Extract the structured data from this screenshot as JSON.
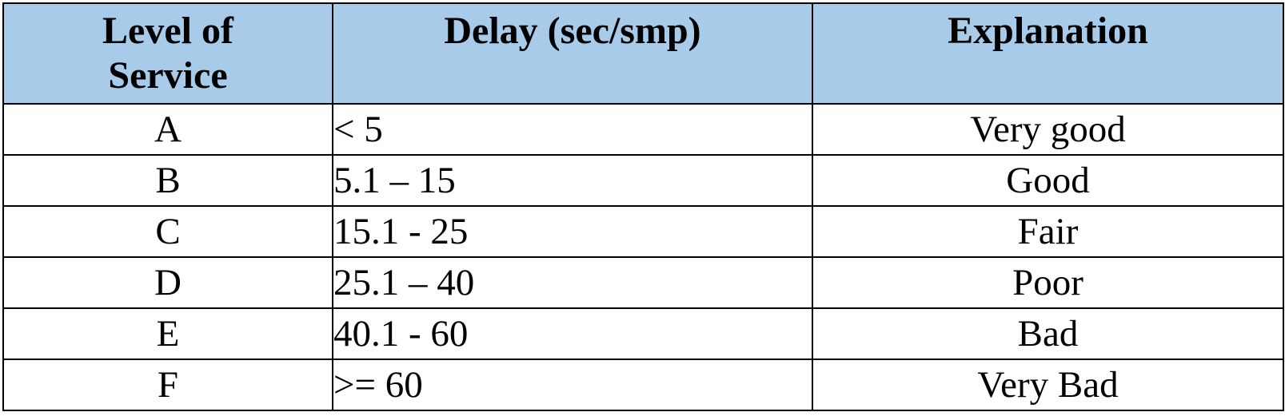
{
  "table": {
    "headers": {
      "level": "Level of Service",
      "delay": "Delay (sec/smp)",
      "explanation": "Explanation"
    },
    "rows": [
      {
        "level": "A",
        "delay": "< 5",
        "explanation": "Very good"
      },
      {
        "level": "B",
        "delay": "5.1 – 15",
        "explanation": "Good"
      },
      {
        "level": "C",
        "delay": "15.1 - 25",
        "explanation": "Fair"
      },
      {
        "level": "D",
        "delay": "25.1 – 40",
        "explanation": "Poor"
      },
      {
        "level": "E",
        "delay": "40.1 - 60",
        "explanation": "Bad"
      },
      {
        "level": "F",
        "delay": ">= 60",
        "explanation": "Very Bad"
      }
    ]
  },
  "colors": {
    "header_background": "#a9cbea",
    "border": "#000000"
  }
}
